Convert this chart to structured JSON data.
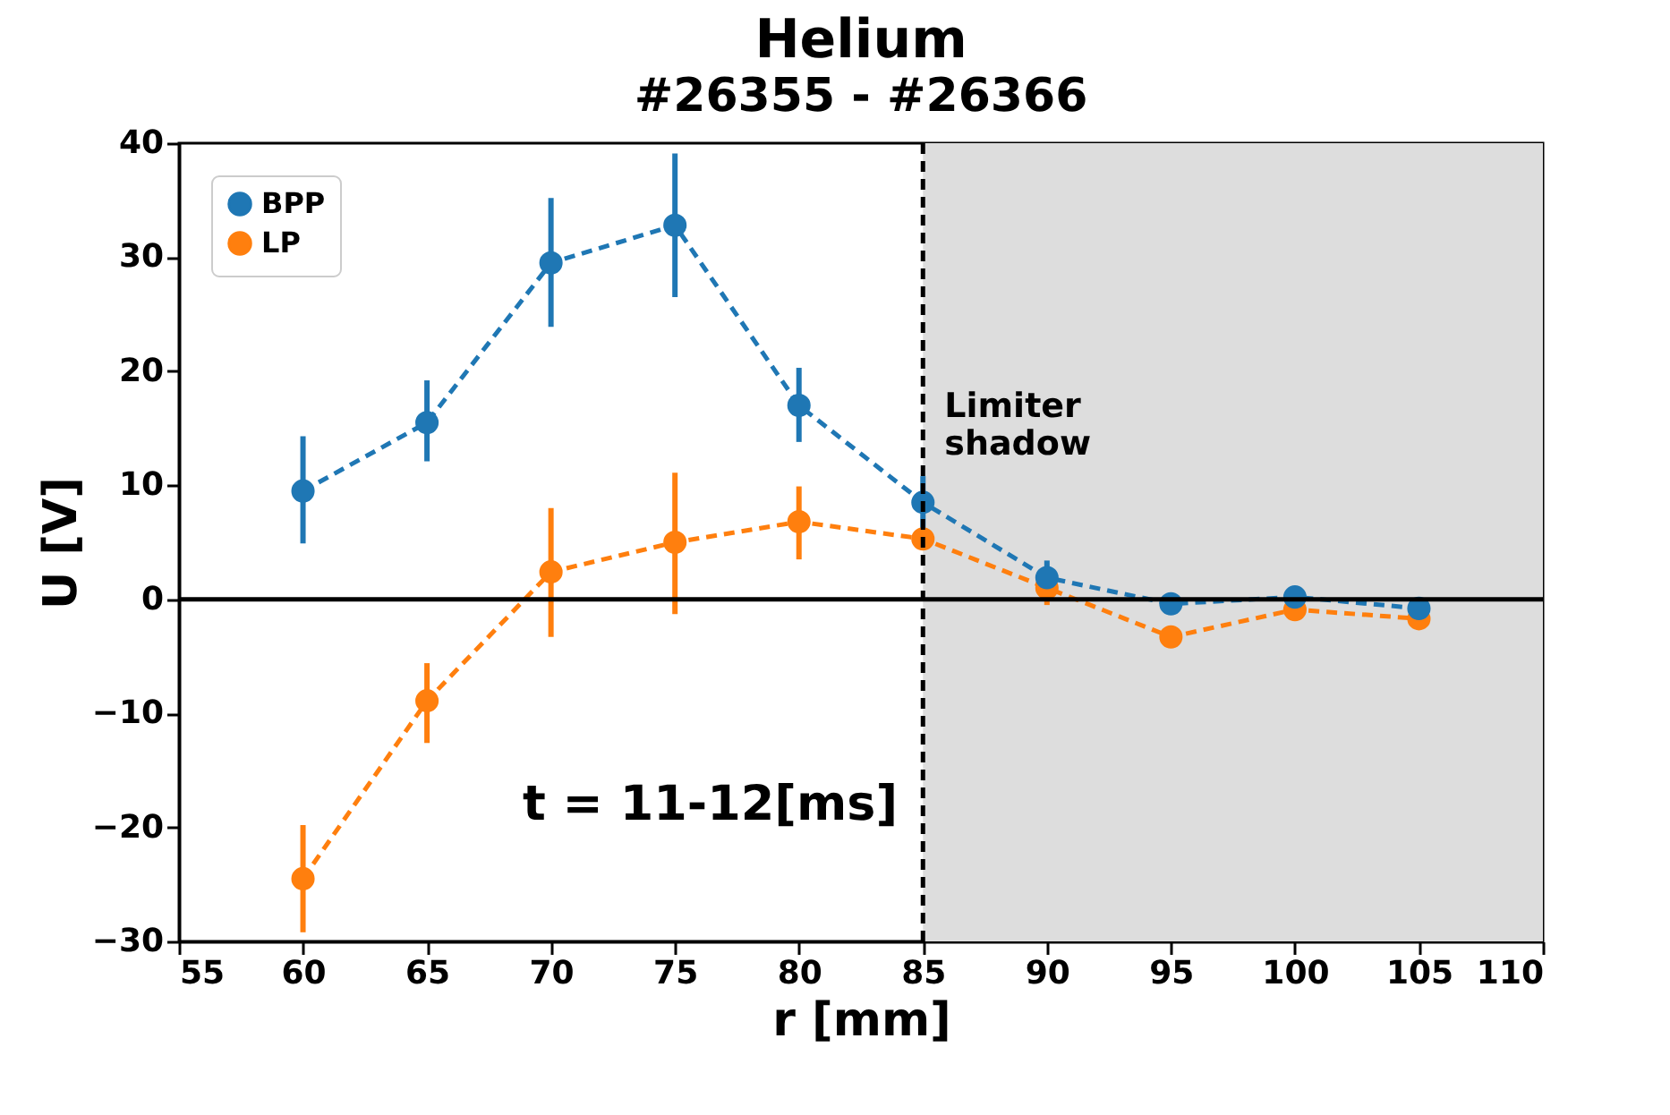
{
  "chart_data": {
    "type": "line",
    "title": "Helium",
    "subtitle": "#26355 - #26366",
    "xlabel": "r [mm]",
    "ylabel": "U [V]",
    "x": [
      60,
      65,
      70,
      75,
      80,
      85,
      90,
      95,
      100,
      105
    ],
    "series": [
      {
        "name": "BPP",
        "color": "#1f77b4",
        "values": [
          9.5,
          15.5,
          29.5,
          32.8,
          17,
          8.5,
          1.9,
          -0.4,
          0.2,
          -0.8
        ],
        "errors": [
          [
            4.9,
            14.3
          ],
          [
            12.1,
            19.2
          ],
          [
            23.9,
            35.2
          ],
          [
            26.5,
            39.1
          ],
          [
            13.8,
            20.3
          ],
          [
            6.2,
            10.8
          ],
          [
            0.4,
            3.4
          ],
          null,
          null,
          null
        ]
      },
      {
        "name": "LP",
        "color": "#ff7f0e",
        "values": [
          -24.5,
          -8.9,
          2.4,
          5.0,
          6.8,
          5.3,
          1.0,
          -3.3,
          -0.9,
          -1.7
        ],
        "errors": [
          [
            -29.2,
            -19.8
          ],
          [
            -12.6,
            -5.6
          ],
          [
            -3.3,
            8.0
          ],
          [
            -1.3,
            11.1
          ],
          [
            3.5,
            9.9
          ],
          null,
          [
            -0.5,
            2.5
          ],
          null,
          null,
          null
        ]
      }
    ],
    "xlim": [
      55,
      110
    ],
    "xticks": [
      55,
      60,
      65,
      70,
      75,
      80,
      85,
      90,
      95,
      100,
      105,
      110
    ],
    "ylim": [
      -30,
      40
    ],
    "yticks": [
      -30,
      -20,
      -10,
      0,
      10,
      20,
      30,
      40
    ],
    "ref_lines": [
      {
        "axis": "y",
        "value": 0,
        "color": "#000000",
        "line_style": "solid"
      },
      {
        "axis": "x",
        "value": 85,
        "color": "#000000",
        "line_style": "dashed"
      }
    ],
    "bands": [
      {
        "axis": "x",
        "from": 85,
        "to": 110,
        "label": "Limiter shadow",
        "color": "#dddddd"
      }
    ],
    "annotations": [
      "t = 11-12[ms]"
    ],
    "marker": "circle",
    "line_style": "dashed",
    "grid": false,
    "legend": "top left"
  }
}
